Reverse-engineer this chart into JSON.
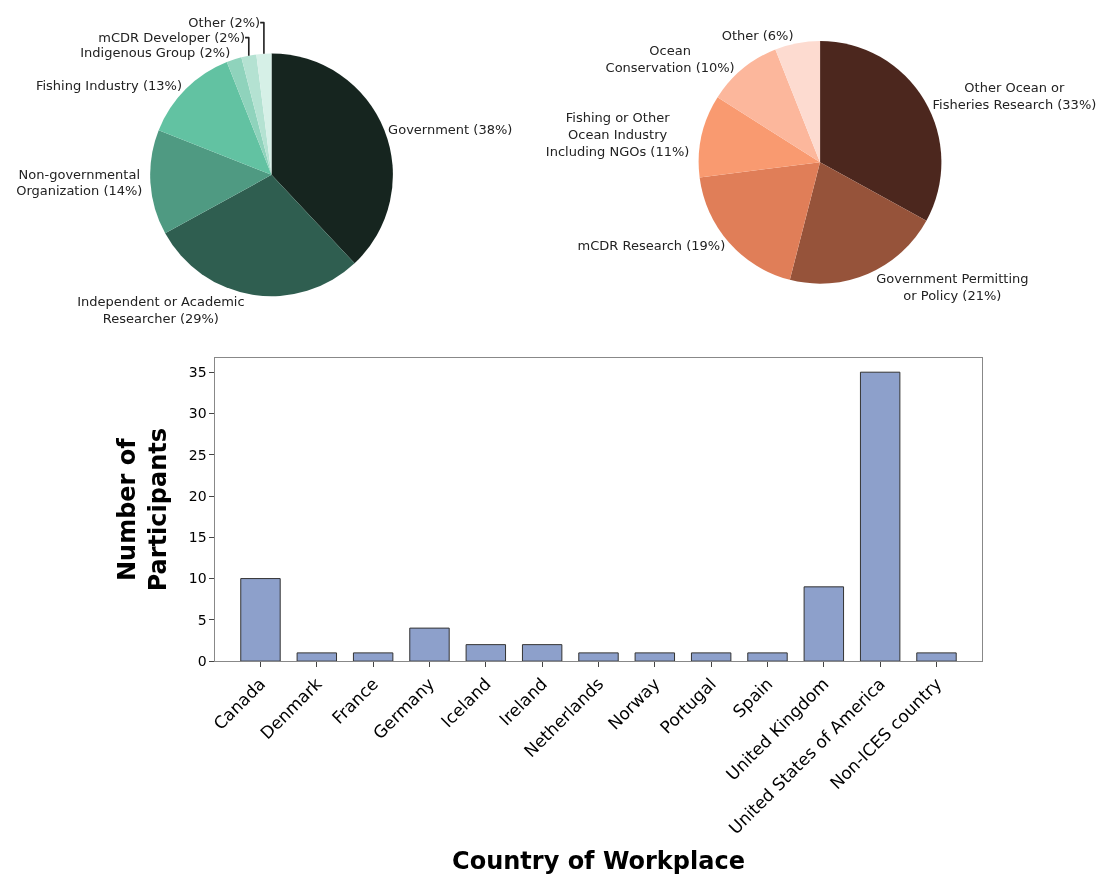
{
  "chart_data": [
    {
      "type": "pie",
      "categories": [
        "Government (38%)",
        "Independent or Academic\nResearcher (29%)",
        "Non-governmental\nOrganization (14%)",
        "Fishing Industry (13%)",
        "Indigenous Group (2%)",
        "mCDR Developer (2%)",
        "Other (2%)"
      ],
      "values": [
        38,
        29,
        14,
        13,
        2,
        2,
        2
      ],
      "colors": [
        "#16251f",
        "#2f5e50",
        "#4f9a82",
        "#62c2a2",
        "#8fd3bc",
        "#b4e2d2",
        "#d6f0e7"
      ]
    },
    {
      "type": "pie",
      "categories": [
        "Other Ocean or\nFisheries Research (33%)",
        "Government Permitting\nor Policy (21%)",
        "mCDR Research (19%)",
        "Fishing or Other\nOcean Industry\nIncluding NGOs (11%)",
        "Ocean\nConservation (10%)",
        "Other (6%)"
      ],
      "values": [
        33,
        21,
        19,
        11,
        10,
        6
      ],
      "colors": [
        "#4c271e",
        "#96533a",
        "#e07e58",
        "#f99a70",
        "#fcb79c",
        "#fddbd0"
      ]
    },
    {
      "type": "bar",
      "xlabel": "Country of Workplace",
      "ylabel": "Number of\nParticipants",
      "categories": [
        "Canada",
        "Denmark",
        "France",
        "Germany",
        "Iceland",
        "Ireland",
        "Netherlands",
        "Norway",
        "Portugal",
        "Spain",
        "United Kingdom",
        "United States of America",
        "Non-ICES country"
      ],
      "values": [
        10,
        1,
        1,
        4,
        2,
        2,
        1,
        1,
        1,
        1,
        9,
        35,
        1
      ],
      "color": "#8da0cb",
      "ylim": [
        0,
        36.7
      ],
      "yticks": [
        0,
        5,
        10,
        15,
        20,
        25,
        30,
        35
      ]
    }
  ]
}
